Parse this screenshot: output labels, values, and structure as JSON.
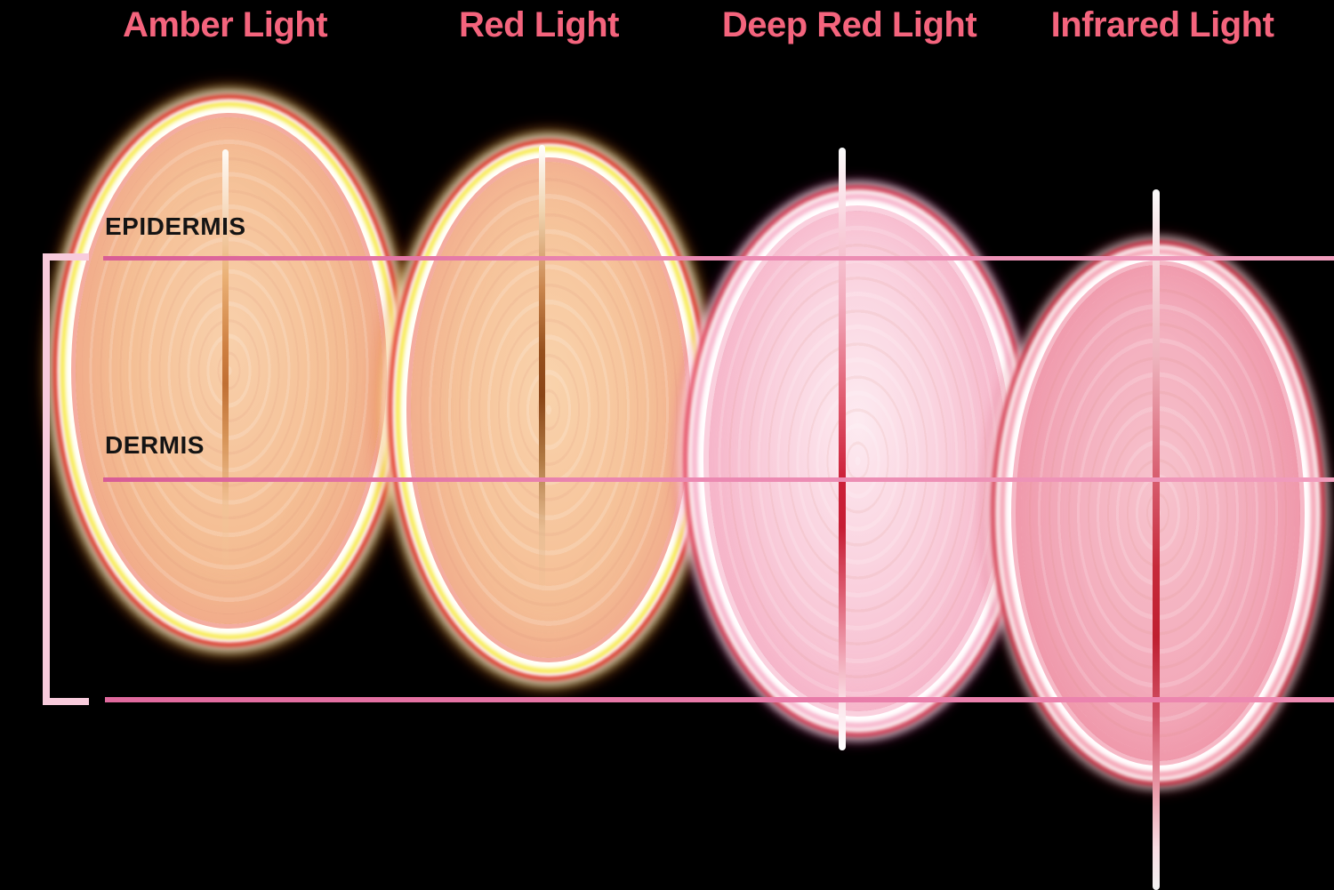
{
  "lights": [
    {
      "title": "Amber Light"
    },
    {
      "title": "Red Light"
    },
    {
      "title": "Deep Red Light"
    },
    {
      "title": "Infrared Light"
    }
  ],
  "skin_layers": {
    "epidermis_label": "EPIDERMIS",
    "dermis_label": "DERMIS"
  },
  "colors": {
    "bg": "#000000",
    "title_pink": "#f4647d",
    "label_ink": "#141414",
    "line_pink_start": "#d85c95",
    "line_pink_end": "#f09cbc",
    "bottom_line_start": "#e0699d",
    "bottom_line_end": "#ee8ab2",
    "bracket_pink": "#f8cbdc",
    "rim_yellow": "#f7eb48",
    "rim_red": "#e12618",
    "rim_white": "#ffffff",
    "rim_magenta": "#ea30c8",
    "amber_fill_hi": "#f8d0ab",
    "amber_fill_lo": "#f1af85",
    "amber_beam": "#cf8142",
    "red_fill_hi": "#f9d3ac",
    "red_fill_lo": "#efab84",
    "red_beam": "#8a4517",
    "deepred_fill_hi": "#fdebf1",
    "deepred_fill_lo": "#f5b2c7",
    "deepred_beam": "#cc2038",
    "infrared_fill_hi": "#f7c3cd",
    "infrared_fill_lo": "#ee93a6",
    "infrared_beam": "#c6293a",
    "beam_white": "#ffffff"
  }
}
